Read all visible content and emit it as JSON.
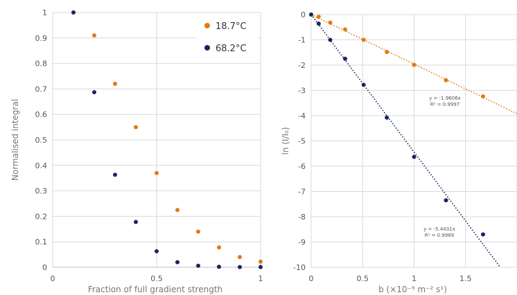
{
  "colors": {
    "orange": "#e07b10",
    "navy": "#1a2560"
  },
  "chart_data": [
    {
      "type": "scatter",
      "xlabel": "Fraction of full gradient strength",
      "ylabel": "Normalised integral",
      "xlim": [
        0,
        1
      ],
      "ylim": [
        0,
        1
      ],
      "xticks": [
        0,
        0.5,
        1
      ],
      "yticks": [
        0,
        0.1,
        0.2,
        0.3,
        0.4,
        0.5,
        0.6,
        0.7,
        0.8,
        0.9,
        1
      ],
      "grid": true,
      "legend_position": "top-right",
      "series": [
        {
          "name": "18.7°C",
          "color": "#e07b10",
          "x": [
            0.1,
            0.2,
            0.3,
            0.4,
            0.5,
            0.6,
            0.7,
            0.8,
            0.9,
            1.0
          ],
          "y": [
            1.0,
            0.91,
            0.72,
            0.55,
            0.37,
            0.225,
            0.14,
            0.078,
            0.04,
            0.022
          ]
        },
        {
          "name": "68.2°C",
          "color": "#1a2560",
          "x": [
            0.1,
            0.2,
            0.3,
            0.4,
            0.5,
            0.6,
            0.7,
            0.8,
            0.9,
            1.0
          ],
          "y": [
            1.0,
            0.687,
            0.363,
            0.178,
            0.063,
            0.02,
            0.006,
            0.002,
            0.001,
            0.001
          ]
        }
      ]
    },
    {
      "type": "scatter",
      "xlabel": "b (×10⁻⁹ m⁻² s¹)",
      "ylabel": "ln (I/I₀)",
      "xlim": [
        0,
        2
      ],
      "ylim": [
        -10,
        0
      ],
      "xticks": [
        0,
        0.5,
        1,
        1.5
      ],
      "yticks": [
        0,
        -1,
        -2,
        -3,
        -4,
        -5,
        -6,
        -7,
        -8,
        -9,
        -10
      ],
      "grid": true,
      "series": [
        {
          "color": "#e07b10",
          "x": [
            0,
            0.073,
            0.185,
            0.33,
            0.51,
            0.735,
            1.0,
            1.31,
            1.67
          ],
          "y": [
            0,
            -0.09,
            -0.32,
            -0.59,
            -1.0,
            -1.48,
            -1.99,
            -2.6,
            -3.24
          ],
          "trendline": {
            "slope": -1.9606,
            "equation": "y = -1.9606x",
            "r2": "R² = 0.9997"
          }
        },
        {
          "color": "#1a2560",
          "x": [
            0,
            0.073,
            0.185,
            0.33,
            0.51,
            0.735,
            1.0,
            1.31,
            1.67
          ],
          "y": [
            0,
            -0.36,
            -1.0,
            -1.75,
            -2.78,
            -4.08,
            -5.63,
            -7.35,
            -8.7
          ],
          "trendline": {
            "slope": -5.4431,
            "equation": "y = -5.4431x",
            "r2": "R² = 0.9989"
          }
        }
      ]
    }
  ]
}
